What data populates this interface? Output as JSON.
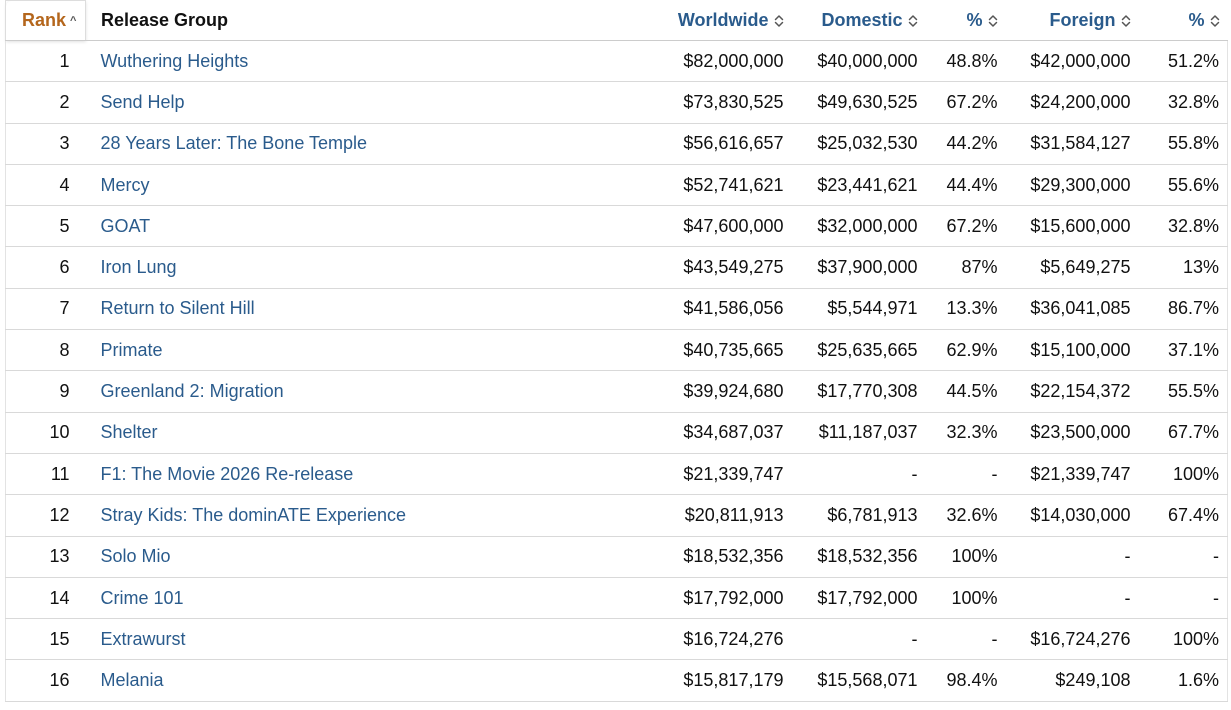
{
  "headers": {
    "rank": "Rank",
    "title": "Release Group",
    "worldwide": "Worldwide",
    "domestic": "Domestic",
    "domestic_pct": "%",
    "foreign": "Foreign",
    "foreign_pct": "%"
  },
  "sort": {
    "active_column": "rank",
    "direction": "ascending"
  },
  "colors": {
    "link": "#2a5b8c",
    "active_sort_header": "#b4661c"
  },
  "rows": [
    {
      "rank": "1",
      "title": "Wuthering Heights",
      "worldwide": "$82,000,000",
      "domestic": "$40,000,000",
      "domestic_pct": "48.8%",
      "foreign": "$42,000,000",
      "foreign_pct": "51.2%"
    },
    {
      "rank": "2",
      "title": "Send Help",
      "worldwide": "$73,830,525",
      "domestic": "$49,630,525",
      "domestic_pct": "67.2%",
      "foreign": "$24,200,000",
      "foreign_pct": "32.8%"
    },
    {
      "rank": "3",
      "title": "28 Years Later: The Bone Temple",
      "worldwide": "$56,616,657",
      "domestic": "$25,032,530",
      "domestic_pct": "44.2%",
      "foreign": "$31,584,127",
      "foreign_pct": "55.8%"
    },
    {
      "rank": "4",
      "title": "Mercy",
      "worldwide": "$52,741,621",
      "domestic": "$23,441,621",
      "domestic_pct": "44.4%",
      "foreign": "$29,300,000",
      "foreign_pct": "55.6%"
    },
    {
      "rank": "5",
      "title": "GOAT",
      "worldwide": "$47,600,000",
      "domestic": "$32,000,000",
      "domestic_pct": "67.2%",
      "foreign": "$15,600,000",
      "foreign_pct": "32.8%"
    },
    {
      "rank": "6",
      "title": "Iron Lung",
      "worldwide": "$43,549,275",
      "domestic": "$37,900,000",
      "domestic_pct": "87%",
      "foreign": "$5,649,275",
      "foreign_pct": "13%"
    },
    {
      "rank": "7",
      "title": "Return to Silent Hill",
      "worldwide": "$41,586,056",
      "domestic": "$5,544,971",
      "domestic_pct": "13.3%",
      "foreign": "$36,041,085",
      "foreign_pct": "86.7%"
    },
    {
      "rank": "8",
      "title": "Primate",
      "worldwide": "$40,735,665",
      "domestic": "$25,635,665",
      "domestic_pct": "62.9%",
      "foreign": "$15,100,000",
      "foreign_pct": "37.1%"
    },
    {
      "rank": "9",
      "title": "Greenland 2: Migration",
      "worldwide": "$39,924,680",
      "domestic": "$17,770,308",
      "domestic_pct": "44.5%",
      "foreign": "$22,154,372",
      "foreign_pct": "55.5%"
    },
    {
      "rank": "10",
      "title": "Shelter",
      "worldwide": "$34,687,037",
      "domestic": "$11,187,037",
      "domestic_pct": "32.3%",
      "foreign": "$23,500,000",
      "foreign_pct": "67.7%"
    },
    {
      "rank": "11",
      "title": "F1: The Movie 2026 Re-release",
      "worldwide": "$21,339,747",
      "domestic": "-",
      "domestic_pct": "-",
      "foreign": "$21,339,747",
      "foreign_pct": "100%"
    },
    {
      "rank": "12",
      "title": "Stray Kids: The dominATE Experience",
      "worldwide": "$20,811,913",
      "domestic": "$6,781,913",
      "domestic_pct": "32.6%",
      "foreign": "$14,030,000",
      "foreign_pct": "67.4%"
    },
    {
      "rank": "13",
      "title": "Solo Mio",
      "worldwide": "$18,532,356",
      "domestic": "$18,532,356",
      "domestic_pct": "100%",
      "foreign": "-",
      "foreign_pct": "-"
    },
    {
      "rank": "14",
      "title": "Crime 101",
      "worldwide": "$17,792,000",
      "domestic": "$17,792,000",
      "domestic_pct": "100%",
      "foreign": "-",
      "foreign_pct": "-"
    },
    {
      "rank": "15",
      "title": "Extrawurst",
      "worldwide": "$16,724,276",
      "domestic": "-",
      "domestic_pct": "-",
      "foreign": "$16,724,276",
      "foreign_pct": "100%"
    },
    {
      "rank": "16",
      "title": "Melania",
      "worldwide": "$15,817,179",
      "domestic": "$15,568,071",
      "domestic_pct": "98.4%",
      "foreign": "$249,108",
      "foreign_pct": "1.6%"
    }
  ]
}
